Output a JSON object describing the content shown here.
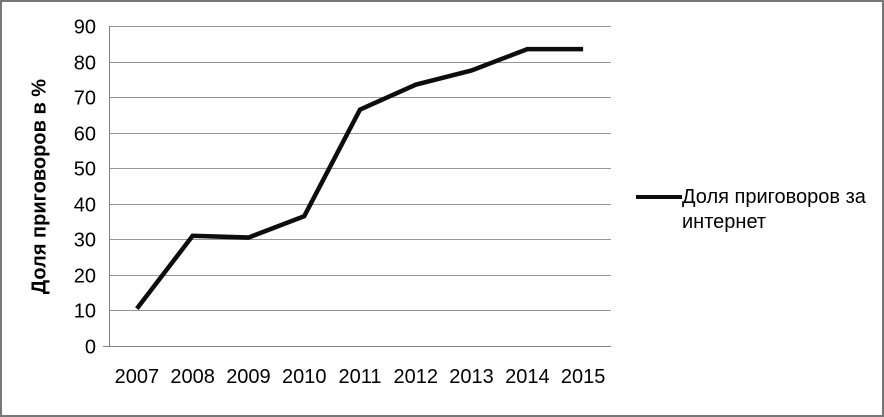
{
  "chart_data": {
    "type": "line",
    "categories": [
      "2007",
      "2008",
      "2009",
      "2010",
      "2011",
      "2012",
      "2013",
      "2014",
      "2015"
    ],
    "series": [
      {
        "name": "Доля приговоров за интернет",
        "values": [
          10.5,
          31,
          30.5,
          36.5,
          66.5,
          73.5,
          77.5,
          83.5,
          83.5
        ]
      }
    ],
    "title": "",
    "xlabel": "",
    "ylabel": "Доля приговоров  в %",
    "ylim": [
      0,
      90
    ],
    "yticks": [
      0,
      10,
      20,
      30,
      40,
      50,
      60,
      70,
      80,
      90
    ],
    "grid": "horizontal-only",
    "legend_position": "right"
  },
  "legend": {
    "line1": "Доля приговоров за",
    "line2": "интернет"
  },
  "colors": {
    "series_line": "#0d0d0d",
    "gridline": "#969696",
    "axis": "#808080",
    "text": "#000000",
    "frame_border": "#777777",
    "background": "#ffffff"
  }
}
